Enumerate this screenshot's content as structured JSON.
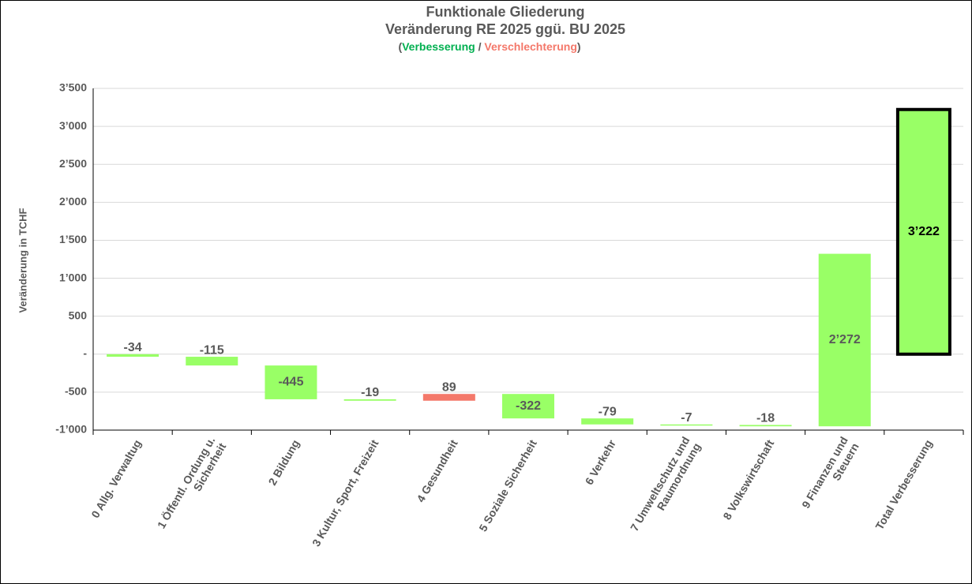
{
  "chart_data": {
    "type": "waterfall",
    "title": "Funktionale Gliederung",
    "title2": "Veränderung RE 2025 ggü. BU 2025",
    "subtitle": [
      "(",
      "Verbesserung",
      " / ",
      "Verschlechterung",
      ")"
    ],
    "subtitle_colors": [
      "#595959",
      "#00b050",
      "#595959",
      "#f4786a",
      "#595959"
    ],
    "y_label": "Veränderung in TCHF",
    "categories": [
      "0 Allg. Verwaltug",
      "1 Öffentl. Ordung u.\nSicherheit",
      "2 Bildung",
      "3 Kultur, Sport, Freizeit",
      "4 Gesundheit",
      "5 Soziale Sicherheit",
      "6 Verkehr",
      "7 Umweltschutz und\nRaumordnung",
      "8 Volkswirtschaft",
      "9 Finanzen und\nSteuern",
      "Total Verbesserung"
    ],
    "values": [
      -34,
      -115,
      -445,
      -19,
      89,
      -322,
      -79,
      -7,
      -18,
      2272,
      3222
    ],
    "value_labels": [
      "-34",
      "-115",
      "-445",
      "-19",
      "89",
      "-322",
      "-79",
      "-7",
      "-18",
      "2’272",
      "3’222"
    ],
    "colors": [
      "#99ff66",
      "#99ff66",
      "#99ff66",
      "#99ff66",
      "#f4786a",
      "#99ff66",
      "#99ff66",
      "#99ff66",
      "#99ff66",
      "#99ff66",
      "#99ff66"
    ],
    "point_kinds": [
      "step",
      "step",
      "step",
      "step",
      "step",
      "step",
      "step",
      "step",
      "step",
      "step",
      "total"
    ],
    "ylim": [
      -1000,
      3500
    ],
    "yticks": [
      {
        "value": -1000,
        "label": "-1’000"
      },
      -500,
      {
        "value": 0,
        "label": "-"
      },
      500,
      {
        "value": 1000,
        "label": "1’000"
      },
      {
        "value": 1500,
        "label": "1’500"
      },
      {
        "value": 2000,
        "label": "2’000"
      },
      {
        "value": 2500,
        "label": "2’500"
      },
      {
        "value": 3000,
        "label": "3’000"
      },
      {
        "value": 3500,
        "label": "3’500"
      }
    ],
    "grid": true
  }
}
